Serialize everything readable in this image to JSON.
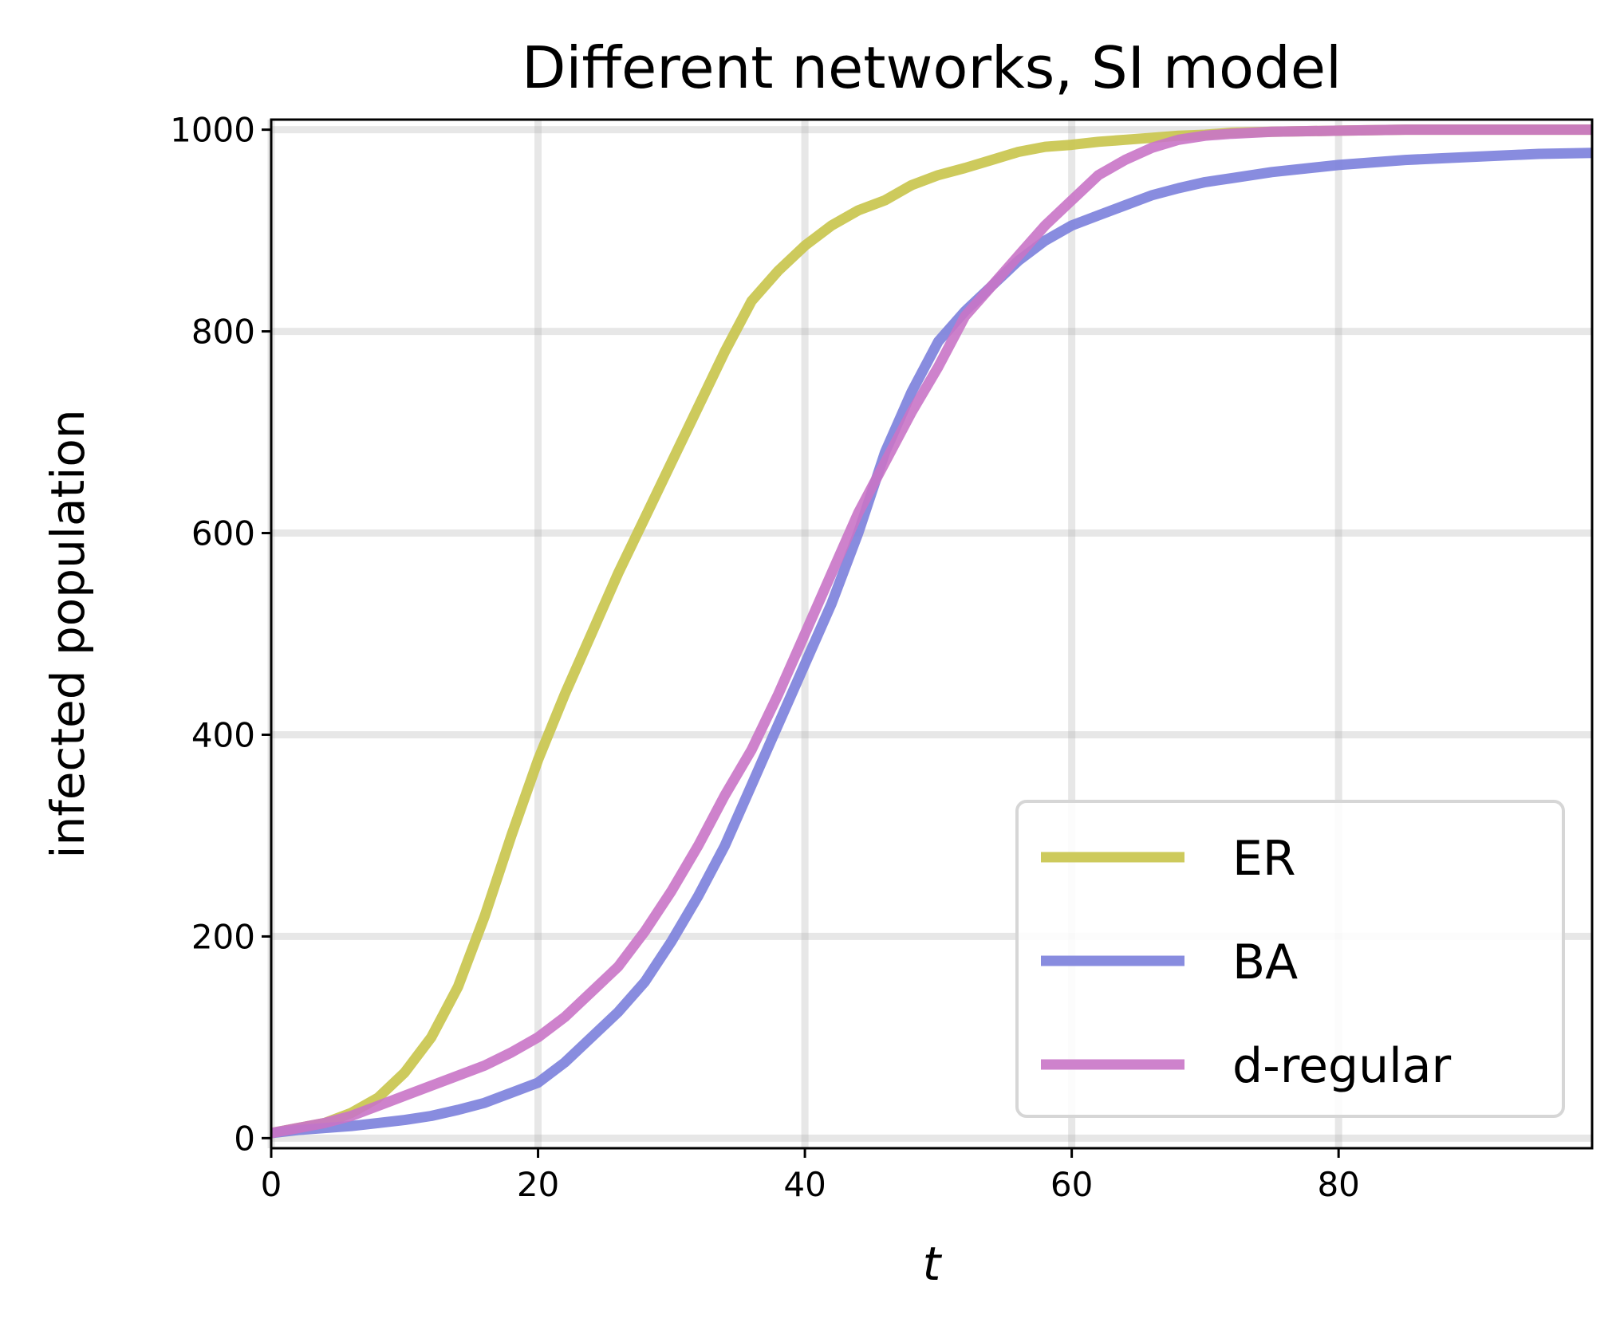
{
  "chart_data": {
    "type": "line",
    "title": "Different networks, SI model",
    "xlabel": "t",
    "ylabel": "infected population",
    "xlim": [
      0,
      99
    ],
    "ylim": [
      -10,
      1010
    ],
    "xticks": [
      0,
      20,
      40,
      60,
      80
    ],
    "yticks": [
      0,
      200,
      400,
      600,
      800,
      1000
    ],
    "grid": true,
    "legend_position": "lower right",
    "series": [
      {
        "name": "ER",
        "color": "#c8c44a",
        "x": [
          0,
          2,
          4,
          6,
          8,
          10,
          12,
          14,
          16,
          18,
          20,
          22,
          24,
          26,
          28,
          30,
          32,
          34,
          36,
          38,
          40,
          42,
          44,
          46,
          48,
          50,
          52,
          54,
          56,
          58,
          60,
          62,
          64,
          66,
          68,
          70,
          72,
          75,
          80,
          85,
          90,
          99
        ],
        "values": [
          5,
          10,
          15,
          25,
          40,
          65,
          100,
          150,
          220,
          300,
          375,
          440,
          500,
          560,
          615,
          670,
          725,
          780,
          830,
          860,
          885,
          905,
          920,
          930,
          945,
          955,
          962,
          970,
          978,
          983,
          985,
          988,
          990,
          992,
          994,
          995,
          997,
          998,
          999,
          1000,
          1000,
          1000
        ]
      },
      {
        "name": "BA",
        "color": "#7b7fdb",
        "x": [
          0,
          2,
          4,
          6,
          8,
          10,
          12,
          14,
          16,
          18,
          20,
          22,
          24,
          26,
          28,
          30,
          32,
          34,
          36,
          38,
          40,
          42,
          44,
          46,
          48,
          50,
          52,
          54,
          56,
          58,
          60,
          62,
          64,
          66,
          68,
          70,
          72,
          75,
          80,
          85,
          90,
          95,
          99
        ],
        "values": [
          5,
          8,
          10,
          12,
          15,
          18,
          22,
          28,
          35,
          45,
          55,
          75,
          100,
          125,
          155,
          195,
          240,
          290,
          350,
          410,
          470,
          530,
          600,
          680,
          740,
          790,
          820,
          845,
          870,
          890,
          905,
          915,
          925,
          935,
          942,
          948,
          952,
          958,
          965,
          970,
          973,
          976,
          977
        ]
      },
      {
        "name": "d-regular",
        "color": "#c974c6",
        "x": [
          0,
          2,
          4,
          6,
          8,
          10,
          12,
          14,
          16,
          18,
          20,
          22,
          24,
          26,
          28,
          30,
          32,
          34,
          36,
          38,
          40,
          42,
          44,
          46,
          48,
          50,
          52,
          54,
          56,
          58,
          60,
          62,
          64,
          66,
          68,
          70,
          72,
          75,
          80,
          85,
          90,
          99
        ],
        "values": [
          5,
          10,
          15,
          22,
          32,
          42,
          52,
          62,
          72,
          85,
          100,
          120,
          145,
          170,
          205,
          245,
          290,
          340,
          385,
          440,
          500,
          560,
          620,
          670,
          720,
          765,
          815,
          845,
          875,
          905,
          930,
          955,
          970,
          982,
          990,
          994,
          996,
          998,
          999,
          1000,
          1000,
          1000
        ]
      }
    ]
  }
}
